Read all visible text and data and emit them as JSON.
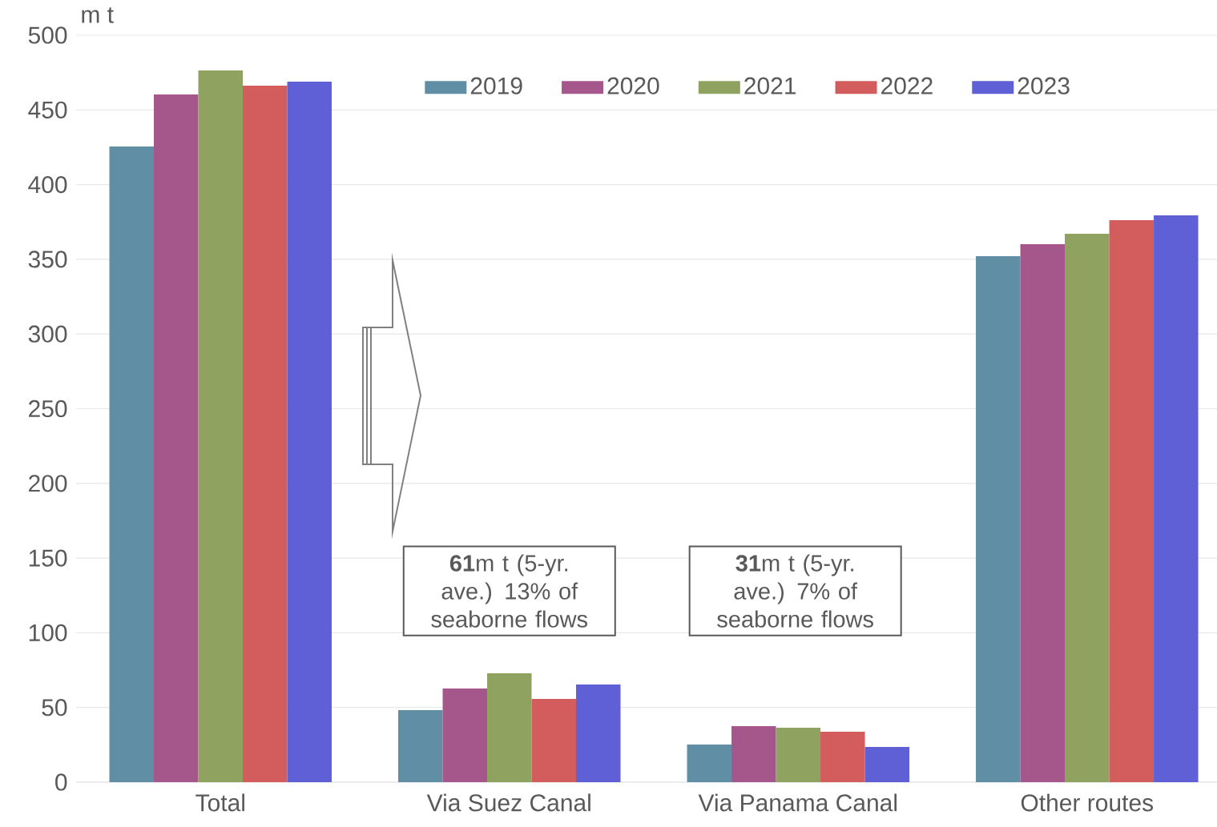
{
  "chart_data": {
    "type": "bar",
    "ylabel": "m t",
    "categories": [
      "Total",
      "Via Suez Canal",
      "Via Panama Canal",
      "Other routes"
    ],
    "series": [
      {
        "name": "2019",
        "color": "#5f8ea5",
        "values": [
          425.5,
          48.2,
          25.2,
          352.1
        ]
      },
      {
        "name": "2020",
        "color": "#a5578c",
        "values": [
          460.3,
          62.7,
          37.5,
          360.1
        ]
      },
      {
        "name": "2021",
        "color": "#8fa260",
        "values": [
          476.4,
          72.9,
          36.4,
          367.1
        ]
      },
      {
        "name": "2022",
        "color": "#d35c5c",
        "values": [
          466.2,
          55.7,
          33.8,
          376.2
        ]
      },
      {
        "name": "2023",
        "color": "#5f5fd6",
        "values": [
          468.9,
          65.4,
          23.6,
          379.4
        ]
      }
    ],
    "ylim": [
      0,
      500
    ],
    "yticks": [
      0,
      50,
      100,
      150,
      200,
      250,
      300,
      350,
      400,
      450,
      500
    ],
    "grid": "y",
    "legend": "top",
    "annotations": [
      "**61**m t (5-yr. ave.) 13% of seaborne flows",
      "**31**m t (5-yr. ave.) 7% of seaborne flows"
    ]
  }
}
